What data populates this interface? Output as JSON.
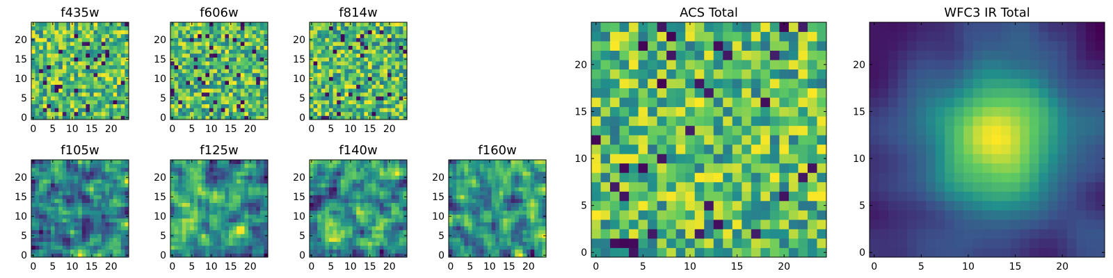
{
  "colormap": [
    "#440154",
    "#3b528b",
    "#21918c",
    "#5ec962",
    "#fde725"
  ],
  "chart_data": [
    {
      "type": "heatmap",
      "title": "f435w",
      "grid": [
        25,
        25
      ],
      "xticks": [
        0,
        5,
        10,
        15,
        20
      ],
      "yticks": [
        0,
        5,
        10,
        15,
        20
      ],
      "xlim": [
        0,
        24
      ],
      "ylim": [
        0,
        24
      ],
      "pattern": "noise",
      "seed": 11
    },
    {
      "type": "heatmap",
      "title": "f606w",
      "grid": [
        25,
        25
      ],
      "xticks": [
        0,
        5,
        10,
        15,
        20
      ],
      "yticks": [
        0,
        5,
        10,
        15,
        20
      ],
      "xlim": [
        0,
        24
      ],
      "ylim": [
        0,
        24
      ],
      "pattern": "noise",
      "seed": 23
    },
    {
      "type": "heatmap",
      "title": "f814w",
      "grid": [
        25,
        25
      ],
      "xticks": [
        0,
        5,
        10,
        15,
        20
      ],
      "yticks": [
        0,
        5,
        10,
        15,
        20
      ],
      "xlim": [
        0,
        24
      ],
      "ylim": [
        0,
        24
      ],
      "pattern": "noise",
      "seed": 37
    },
    {
      "type": "heatmap",
      "title": "f105w",
      "grid": [
        25,
        25
      ],
      "xticks": [
        0,
        5,
        10,
        15,
        20
      ],
      "yticks": [
        0,
        5,
        10,
        15,
        20
      ],
      "xlim": [
        0,
        24
      ],
      "ylim": [
        0,
        24
      ],
      "pattern": "smooth",
      "seed": 41
    },
    {
      "type": "heatmap",
      "title": "f125w",
      "grid": [
        25,
        25
      ],
      "xticks": [
        0,
        5,
        10,
        15,
        20
      ],
      "yticks": [
        0,
        5,
        10,
        15,
        20
      ],
      "xlim": [
        0,
        24
      ],
      "ylim": [
        0,
        24
      ],
      "pattern": "smooth",
      "seed": 53
    },
    {
      "type": "heatmap",
      "title": "f140w",
      "grid": [
        25,
        25
      ],
      "xticks": [
        0,
        5,
        10,
        15,
        20
      ],
      "yticks": [
        0,
        5,
        10,
        15,
        20
      ],
      "xlim": [
        0,
        24
      ],
      "ylim": [
        0,
        24
      ],
      "pattern": "smooth",
      "seed": 67
    },
    {
      "type": "heatmap",
      "title": "f160w",
      "grid": [
        25,
        25
      ],
      "xticks": [
        0,
        5,
        10,
        15,
        20
      ],
      "yticks": [
        0,
        5,
        10,
        15,
        20
      ],
      "xlim": [
        0,
        24
      ],
      "ylim": [
        0,
        24
      ],
      "pattern": "smooth",
      "seed": 79
    },
    {
      "type": "heatmap",
      "title": "ACS Total",
      "grid": [
        25,
        25
      ],
      "xticks": [
        0,
        5,
        10,
        15,
        20
      ],
      "yticks": [
        0,
        5,
        10,
        15,
        20
      ],
      "xlim": [
        0,
        24
      ],
      "ylim": [
        0,
        24
      ],
      "pattern": "noise",
      "seed": 97
    },
    {
      "type": "heatmap",
      "title": "WFC3 IR Total",
      "grid": [
        25,
        25
      ],
      "xticks": [
        0,
        5,
        10,
        15,
        20
      ],
      "yticks": [
        0,
        5,
        10,
        15,
        20
      ],
      "xlim": [
        0,
        24
      ],
      "ylim": [
        0,
        24
      ],
      "pattern": "blob",
      "seed": 103
    }
  ]
}
